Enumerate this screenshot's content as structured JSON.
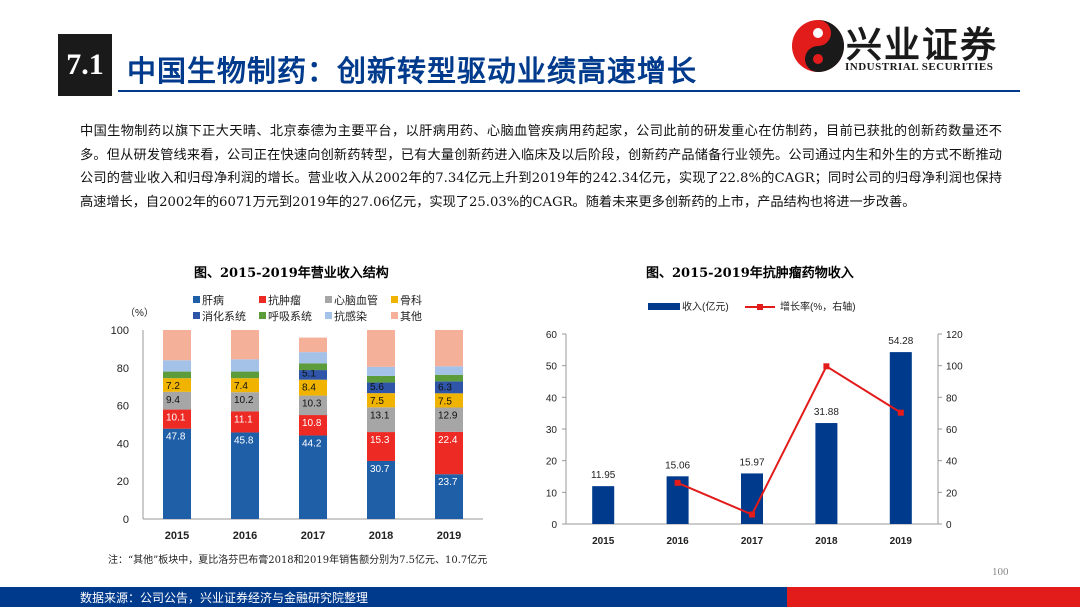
{
  "header": {
    "section_number": "7.1",
    "title": "中国生物制药：创新转型驱动业绩高速增长"
  },
  "logo": {
    "name_cn": "兴业证券",
    "name_en": "INDUSTRIAL SECURITIES"
  },
  "paragraph": "中国生物制药以旗下正大天晴、北京泰德为主要平台，以肝病用药、心脑血管疾病用药起家，公司此前的研发重心在仿制药，目前已获批的创新药数量还不多。但从研发管线来看，公司正在快速向创新药转型，已有大量创新药进入临床及以后阶段，创新药产品储备行业领先。公司通过内生和外生的方式不断推动公司的营业收入和归母净利润的增长。营业收入从2002年的7.34亿元上升到2019年的242.34亿元，实现了22.8%的CAGR；同时公司的归母净利润也保持高速增长，自2002年的6071万元到2019年的27.06亿元，实现了25.03%的CAGR。随着未来更多创新药的上市，产品结构也将进一步改善。",
  "note": "注：“其他”板块中，夏比洛芬巴布膏2018和2019年销售额分别为7.5亿元、10.7亿元",
  "page_number": "100",
  "footer_source": "数据来源：公司公告，兴业证券经济与金融研究院整理",
  "colors": {
    "navy": "#003a8c",
    "red": "#e21b1b"
  },
  "chart_data": [
    {
      "type": "bar",
      "stacked": true,
      "title": "图、2015-2019年营业收入结构",
      "ylabel": "（%）",
      "ylim": [
        0,
        100
      ],
      "yticks": [
        0,
        20,
        40,
        60,
        80,
        100
      ],
      "categories": [
        "2015",
        "2016",
        "2017",
        "2018",
        "2019"
      ],
      "legend_position": "top",
      "series": [
        {
          "name": "肝病",
          "color": "#1f5fa8",
          "values": [
            47.8,
            45.8,
            44.2,
            30.7,
            23.7
          ]
        },
        {
          "name": "抗肿瘤",
          "color": "#ee2a24",
          "values": [
            10.1,
            11.1,
            10.8,
            15.3,
            22.4
          ]
        },
        {
          "name": "心脑血管",
          "color": "#a6a6a6",
          "values": [
            9.4,
            10.2,
            10.3,
            13.1,
            12.9
          ]
        },
        {
          "name": "骨科",
          "color": "#f0b400",
          "values": [
            7.2,
            7.4,
            8.4,
            7.5,
            7.5
          ]
        },
        {
          "name": "消化系统",
          "color": "#2f55a8",
          "values": [
            null,
            null,
            5.1,
            5.6,
            6.3
          ]
        },
        {
          "name": "呼吸系统",
          "color": "#5c9c3a",
          "values": [
            3.5,
            3.5,
            3.5,
            3.5,
            3.5
          ]
        },
        {
          "name": "抗感染",
          "color": "#a4c1e8",
          "values": [
            6.0,
            6.5,
            6.0,
            4.8,
            4.5
          ]
        },
        {
          "name": "其他",
          "color": "#f5b09a",
          "values": [
            16.0,
            15.5,
            7.7,
            19.5,
            19.2
          ]
        }
      ],
      "labels_shown": {
        "肝病": [
          "47.8",
          "45.8",
          "44.2",
          "30.7",
          "23.7"
        ],
        "抗肿瘤": [
          "10.1",
          "11.1",
          "10.8",
          "15.3",
          "22.4"
        ],
        "心脑血管": [
          "9.4",
          "10.2",
          "10.3",
          "13.1",
          "12.9"
        ],
        "骨科": [
          "7.2",
          "7.4",
          "8.4",
          "7.5",
          "7.5"
        ],
        "消化系统": [
          "",
          "",
          "5.1",
          "5.6",
          "6.3"
        ]
      }
    },
    {
      "type": "bar",
      "title": "图、2015-2019年抗肿瘤药物收入",
      "categories": [
        "2015",
        "2016",
        "2017",
        "2018",
        "2019"
      ],
      "legend_position": "top",
      "ylim": [
        0,
        60
      ],
      "yticks": [
        0,
        10,
        20,
        30,
        40,
        50,
        60
      ],
      "y2lim": [
        0,
        120
      ],
      "y2ticks": [
        0,
        20,
        40,
        60,
        80,
        100,
        120
      ],
      "series": [
        {
          "name": "收入(亿元)",
          "type": "bar",
          "color": "#003a8c",
          "values": [
            11.95,
            15.06,
            15.97,
            31.88,
            54.28
          ],
          "labels": [
            "11.95",
            "15.06",
            "15.97",
            "31.88",
            "54.28"
          ]
        },
        {
          "name": "增长率(%，右轴)",
          "type": "line",
          "axis": "right",
          "color": "#e21b1b",
          "values": [
            null,
            26.0,
            6.0,
            99.6,
            70.3
          ]
        }
      ]
    }
  ]
}
